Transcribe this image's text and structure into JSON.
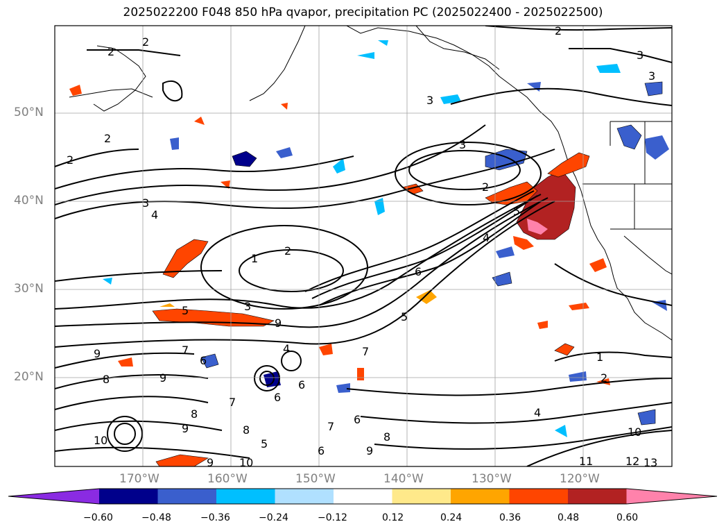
{
  "title": "2025022200 F048 850 hPa qvapor, precipitation PC (2025022400 - 2025022500)",
  "map": {
    "projection": "cylindrical",
    "lon_range": [
      -180,
      -110
    ],
    "lat_range": [
      10,
      60
    ],
    "lat_ticks": [
      "50°N",
      "40°N",
      "30°N",
      "20°N"
    ],
    "lon_ticks": [
      "170°W",
      "160°W",
      "150°W",
      "140°W",
      "130°W",
      "120°W"
    ],
    "grid": true,
    "contour_color": "#000000",
    "contour_labels": [
      "2",
      "2",
      "2",
      "2",
      "2",
      "3",
      "3",
      "3",
      "2",
      "3",
      "4",
      "2",
      "1",
      "3",
      "5",
      "9",
      "5",
      "6",
      "7",
      "4",
      "7",
      "9",
      "8",
      "6",
      "9",
      "8",
      "7",
      "9",
      "8",
      "6",
      "6",
      "7",
      "5",
      "9",
      "10",
      "6",
      "9",
      "10",
      "8",
      "4",
      "6",
      "1",
      "2",
      "10",
      "11",
      "12",
      "13",
      "4",
      "5",
      "3"
    ]
  },
  "colorbar": {
    "ticks": [
      "−0.60",
      "−0.48",
      "−0.36",
      "−0.24",
      "−0.12",
      "0.12",
      "0.24",
      "0.36",
      "0.48",
      "0.60"
    ],
    "colors": [
      "#8a2be2",
      "#00008b",
      "#3a5fcd",
      "#00bfff",
      "#b0e0ff",
      "#ffffff",
      "#ffe98a",
      "#ffa500",
      "#ff4500",
      "#b22222",
      "#ff82ab"
    ],
    "extend": "both"
  }
}
